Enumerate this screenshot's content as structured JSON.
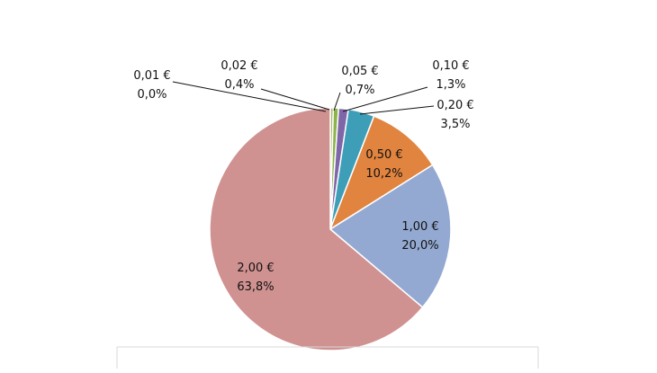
{
  "chart_data": {
    "type": "pie",
    "title": "",
    "slices": [
      {
        "name": "0,01 €",
        "value": 0.0,
        "pct_label": "0,0%",
        "color": "#4a7a1e"
      },
      {
        "name": "0,02 €",
        "value": 0.4,
        "pct_label": "0,4%",
        "color": "#a9bb73"
      },
      {
        "name": "0,05 €",
        "value": 0.7,
        "pct_label": "0,7%",
        "color": "#8db34a"
      },
      {
        "name": "0,10 €",
        "value": 1.3,
        "pct_label": "1,3%",
        "color": "#7f66a8"
      },
      {
        "name": "0,20 €",
        "value": 3.5,
        "pct_label": "3,5%",
        "color": "#3e9eb8"
      },
      {
        "name": "0,50 €",
        "value": 10.2,
        "pct_label": "10,2%",
        "color": "#e0843f"
      },
      {
        "name": "1,00 €",
        "value": 20.0,
        "pct_label": "20,0%",
        "color": "#93a9d2"
      },
      {
        "name": "2,00 €",
        "value": 63.8,
        "pct_label": "63,8%",
        "color": "#d09191"
      }
    ],
    "start_angle": "12 o'clock",
    "direction": "clockwise",
    "legend": "none"
  }
}
